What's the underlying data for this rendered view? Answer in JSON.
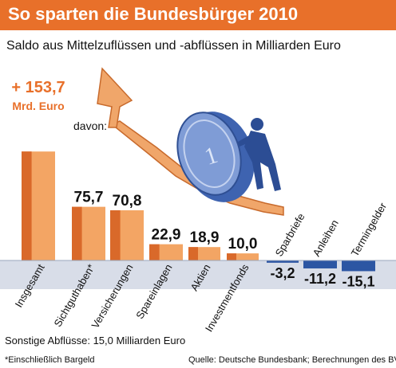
{
  "title": "So sparten die Bundesbürger 2010",
  "subtitle": "Saldo aus Mittelzuflüssen und -abflüssen in Milliarden Euro",
  "davon_label": "davon:",
  "total_value_label": "+ 153,7",
  "total_unit_label": "Mrd. Euro",
  "other_outflows": "Sonstige Abflüsse: 15,0 Milliarden Euro",
  "footnote": "*Einschließlich Bargeld",
  "source": "Quelle: Deutsche Bundesbank; Berechnungen des BVR",
  "colors": {
    "accent": "#e8702a",
    "bar_light": "#f3a564",
    "bar_dark": "#d9692a",
    "negative_bar": "#2c56a3",
    "zero_band": "#d8dde8"
  },
  "chart_data": {
    "type": "bar",
    "title": "So sparten die Bundesbürger 2010",
    "subtitle": "Saldo aus Mittelzuflüssen und -abflüssen in Milliarden Euro",
    "categories": [
      "Insgesamt",
      "Sichtguthaben*",
      "Versicherungen",
      "Spareinlagen",
      "Aktien",
      "Investmentfonds",
      "Sparbriefe",
      "Anleihen",
      "Termingelder"
    ],
    "values": [
      153.7,
      75.7,
      70.8,
      22.9,
      18.9,
      10.0,
      -3.2,
      -11.2,
      -15.1
    ],
    "value_labels": [
      "+ 153,7",
      "75,7",
      "70,8",
      "22,9",
      "18,9",
      "10,0",
      "-3,2",
      "-11,2",
      "-15,1"
    ],
    "unit": "Mrd. Euro",
    "grid": false,
    "legend": "none"
  }
}
